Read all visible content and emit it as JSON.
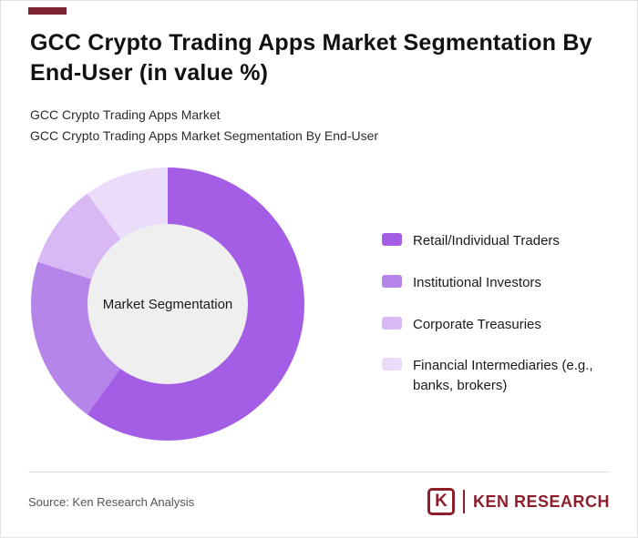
{
  "accent": {
    "bar_color": "#7d2332"
  },
  "header": {
    "title": "GCC Crypto Trading Apps Market Segmentation By End-User (in value %)",
    "subtitle_line1": "GCC Crypto Trading Apps Market",
    "subtitle_line2": "GCC Crypto Trading Apps Market Segmentation By End-User"
  },
  "chart_data": {
    "type": "pie",
    "donut": true,
    "title": "GCC Crypto Trading Apps Market Segmentation By End-User (in value %)",
    "center_label": "Market Segmentation",
    "legend_position": "right",
    "categories": [
      "Retail/Individual Traders",
      "Institutional Investors",
      "Corporate Treasuries",
      "Financial Intermediaries (e.g., banks, brokers)"
    ],
    "values": [
      60,
      20,
      10,
      10
    ],
    "colors": [
      "#a45ee5",
      "#b685ea",
      "#d9b9f4",
      "#ebdcfa"
    ],
    "hole_color": "#efefef"
  },
  "footer": {
    "source": "Source: Ken Research Analysis",
    "brand": {
      "logo_letter": "K",
      "name": "KEN RESEARCH",
      "color": "#8d1f2d"
    }
  }
}
